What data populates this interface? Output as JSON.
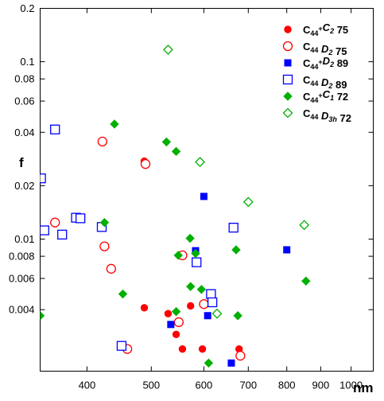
{
  "chart_data": {
    "type": "scatter",
    "x_scale": "log",
    "y_scale": "log",
    "xlabel": "nm",
    "ylabel": "f",
    "xlim": [
      340,
      1080
    ],
    "ylim": [
      0.0018,
      0.2
    ],
    "x_ticks": [
      {
        "value": 400,
        "label": "400"
      },
      {
        "value": 500,
        "label": "500"
      },
      {
        "value": 600,
        "label": "600"
      },
      {
        "value": 700,
        "label": "700"
      },
      {
        "value": 800,
        "label": "800"
      },
      {
        "value": 900,
        "label": "900"
      },
      {
        "value": 1000,
        "label": "1000"
      }
    ],
    "y_ticks": [
      {
        "value": 0.2,
        "label": "0.2"
      },
      {
        "value": 0.1,
        "label": "0.1"
      },
      {
        "value": 0.08,
        "label": "0.08"
      },
      {
        "value": 0.06,
        "label": "0.06"
      },
      {
        "value": 0.04,
        "label": "0.04"
      },
      {
        "value": 0.02,
        "label": "0.02"
      },
      {
        "value": 0.01,
        "label": "0.01"
      },
      {
        "value": 0.008,
        "label": "0.008"
      },
      {
        "value": 0.006,
        "label": "0.006"
      },
      {
        "value": 0.004,
        "label": "0.004"
      }
    ],
    "grid": false,
    "legend_position": "top-right",
    "series": [
      {
        "name_parts": [
          [
            "C",
            ""
          ],
          [
            "44",
            "sub"
          ],
          [
            "+",
            "sup"
          ],
          [
            "C",
            "it"
          ],
          [
            "2",
            "sub-it"
          ],
          [
            " 75",
            ""
          ]
        ],
        "marker": "circle",
        "filled": true,
        "color": "#ff0000",
        "points": [
          [
            488,
            0.0275
          ],
          [
            488,
            0.0041
          ],
          [
            530,
            0.0038
          ],
          [
            545,
            0.0029
          ],
          [
            557,
            0.0024
          ],
          [
            573,
            0.0042
          ],
          [
            597,
            0.0024
          ],
          [
            678,
            0.0024
          ]
        ]
      },
      {
        "name_parts": [
          [
            "C",
            ""
          ],
          [
            "44",
            "sub"
          ],
          [
            "  ",
            ""
          ],
          [
            "D",
            "it"
          ],
          [
            "2",
            "sub-it"
          ],
          [
            " 75",
            ""
          ]
        ],
        "marker": "circle",
        "filled": false,
        "color": "#ff0000",
        "points": [
          [
            358,
            0.0124
          ],
          [
            422,
            0.0355
          ],
          [
            425,
            0.0091
          ],
          [
            490,
            0.0265
          ],
          [
            435,
            0.0068
          ],
          [
            460,
            0.0024
          ],
          [
            550,
            0.0034
          ],
          [
            557,
            0.0081
          ],
          [
            600,
            0.0043
          ],
          [
            681,
            0.0022
          ]
        ]
      },
      {
        "name_parts": [
          [
            "C",
            ""
          ],
          [
            "44",
            "sub"
          ],
          [
            "+",
            "sup"
          ],
          [
            "D",
            "it"
          ],
          [
            "2",
            "sub-it"
          ],
          [
            "  89",
            ""
          ]
        ],
        "marker": "square",
        "filled": true,
        "color": "#0000ff",
        "points": [
          [
            535,
            0.0033
          ],
          [
            583,
            0.0086
          ],
          [
            600,
            0.0174
          ],
          [
            608,
            0.0037
          ],
          [
            660,
            0.002
          ],
          [
            800,
            0.0087
          ]
        ]
      },
      {
        "name_parts": [
          [
            "C",
            ""
          ],
          [
            "44",
            "sub"
          ],
          [
            "  ",
            ""
          ],
          [
            "D",
            "it"
          ],
          [
            "2",
            "sub-it"
          ],
          [
            "  89",
            ""
          ]
        ],
        "marker": "square",
        "filled": false,
        "color": "#0000ff",
        "points": [
          [
            341,
            0.022
          ],
          [
            345,
            0.0112
          ],
          [
            358,
            0.0415
          ],
          [
            367,
            0.0106
          ],
          [
            385,
            0.0132
          ],
          [
            391,
            0.0131
          ],
          [
            421,
            0.0117
          ],
          [
            451,
            0.0025
          ],
          [
            585,
            0.0074
          ],
          [
            615,
            0.0049
          ],
          [
            618,
            0.0044
          ],
          [
            665,
            0.0116
          ]
        ]
      },
      {
        "name_parts": [
          [
            "C",
            ""
          ],
          [
            "44",
            "sub"
          ],
          [
            "+",
            "sup"
          ],
          [
            "C",
            "it"
          ],
          [
            "1",
            "sub-it"
          ],
          [
            "  72",
            ""
          ]
        ],
        "marker": "diamond",
        "filled": true,
        "color": "#00b000",
        "points": [
          [
            340,
            0.0037
          ],
          [
            425,
            0.0124
          ],
          [
            440,
            0.0445
          ],
          [
            453,
            0.0049
          ],
          [
            527,
            0.0353
          ],
          [
            545,
            0.0312
          ],
          [
            549,
            0.0081
          ],
          [
            545,
            0.0039
          ],
          [
            572,
            0.0101
          ],
          [
            573,
            0.0054
          ],
          [
            583,
            0.0083
          ],
          [
            595,
            0.0052
          ],
          [
            610,
            0.002
          ],
          [
            671,
            0.0087
          ],
          [
            675,
            0.0037
          ],
          [
            855,
            0.0058
          ]
        ]
      },
      {
        "name_parts": [
          [
            "C",
            ""
          ],
          [
            "44",
            "sub"
          ],
          [
            "  ",
            ""
          ],
          [
            "D",
            "it"
          ],
          [
            "3h",
            "sub-it"
          ],
          [
            " 72",
            ""
          ]
        ],
        "marker": "diamond",
        "filled": false,
        "color": "#00b000",
        "points": [
          [
            530,
            0.117
          ],
          [
            592,
            0.0272
          ],
          [
            628,
            0.0038
          ],
          [
            700,
            0.0162
          ],
          [
            850,
            0.012
          ]
        ]
      }
    ]
  }
}
